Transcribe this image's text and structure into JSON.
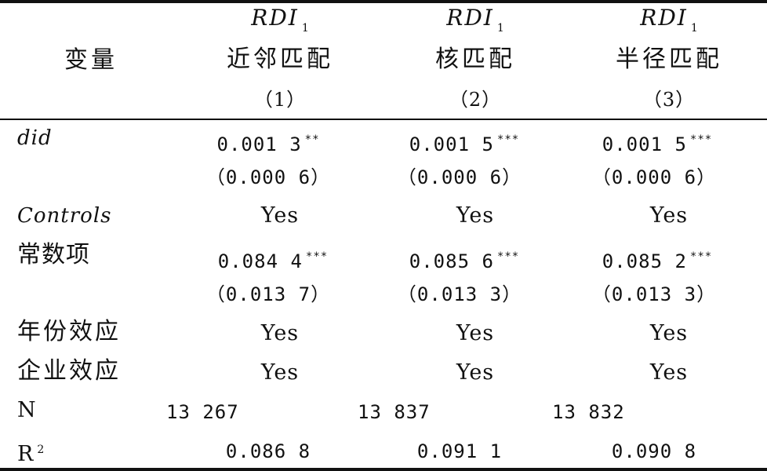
{
  "header": {
    "row_label": "变量",
    "columns": [
      {
        "metric": "RDI",
        "metric_sub": "1",
        "method": "近邻匹配",
        "index": "（1）"
      },
      {
        "metric": "RDI",
        "metric_sub": "1",
        "method": "核匹配",
        "index": "（2）"
      },
      {
        "metric": "RDI",
        "metric_sub": "1",
        "method": "半径匹配",
        "index": "（3）"
      }
    ]
  },
  "rows": [
    {
      "label": "did",
      "values": [
        "0.001 3",
        "0.001 5",
        "0.001 5"
      ],
      "stars": [
        "**",
        "***",
        "***"
      ]
    },
    {
      "label": "",
      "values": [
        "（0.000 6）",
        "（0.000 6）",
        "（0.000 6）"
      ]
    },
    {
      "label": "Controls",
      "values": [
        "Yes",
        "Yes",
        "Yes"
      ]
    },
    {
      "label": "常数项",
      "values": [
        "0.084 4",
        "0.085 6",
        "0.085 2"
      ],
      "stars": [
        "***",
        "***",
        "***"
      ]
    },
    {
      "label": "",
      "values": [
        "（0.013 7）",
        "（0.013 3）",
        "（0.013 3）"
      ]
    },
    {
      "label": "年份效应",
      "values": [
        "Yes",
        "Yes",
        "Yes"
      ]
    },
    {
      "label": "企业效应",
      "values": [
        "Yes",
        "Yes",
        "Yes"
      ]
    },
    {
      "label": "N",
      "values": [
        "13 267",
        "13 837",
        "13 832"
      ]
    },
    {
      "label": "R",
      "label_sup": "2",
      "values": [
        "0.086 8",
        "0.091 1",
        "0.090 8"
      ]
    }
  ]
}
